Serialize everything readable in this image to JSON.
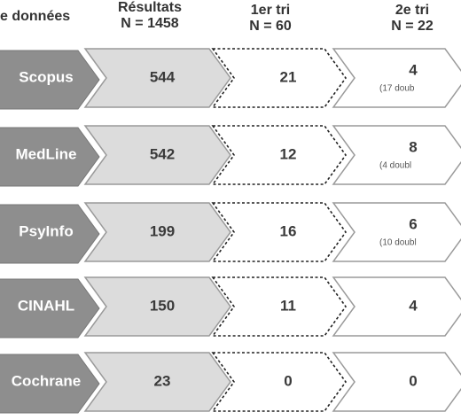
{
  "headers": {
    "database": "e données",
    "results_title": "Résultats",
    "results_n": "N = 1458",
    "first_sort_title": "1er tri",
    "first_sort_n": "N = 60",
    "second_sort_title": "2e tri",
    "second_sort_n": "N = 22"
  },
  "rows": [
    {
      "database": "Scopus",
      "results": "544",
      "first_sort": "21",
      "second_sort": "4",
      "second_note": "(17 doub"
    },
    {
      "database": "MedLine",
      "results": "542",
      "first_sort": "12",
      "second_sort": "8",
      "second_note": "(4 doubl"
    },
    {
      "database": "PsyInfo",
      "results": "199",
      "first_sort": "16",
      "second_sort": "6",
      "second_note": "(10 doubl"
    },
    {
      "database": "CINAHL",
      "results": "150",
      "first_sort": "11",
      "second_sort": "4",
      "second_note": ""
    },
    {
      "database": "Cochrane",
      "results": "23",
      "first_sort": "0",
      "second_sort": "0",
      "second_note": ""
    }
  ],
  "colors": {
    "database_fill": "#8e8e8e",
    "results_fill": "#dcdcdc",
    "outline": "#9a9a9a",
    "dashed_stroke": "#222222",
    "text_dark": "#3a3a3a"
  }
}
